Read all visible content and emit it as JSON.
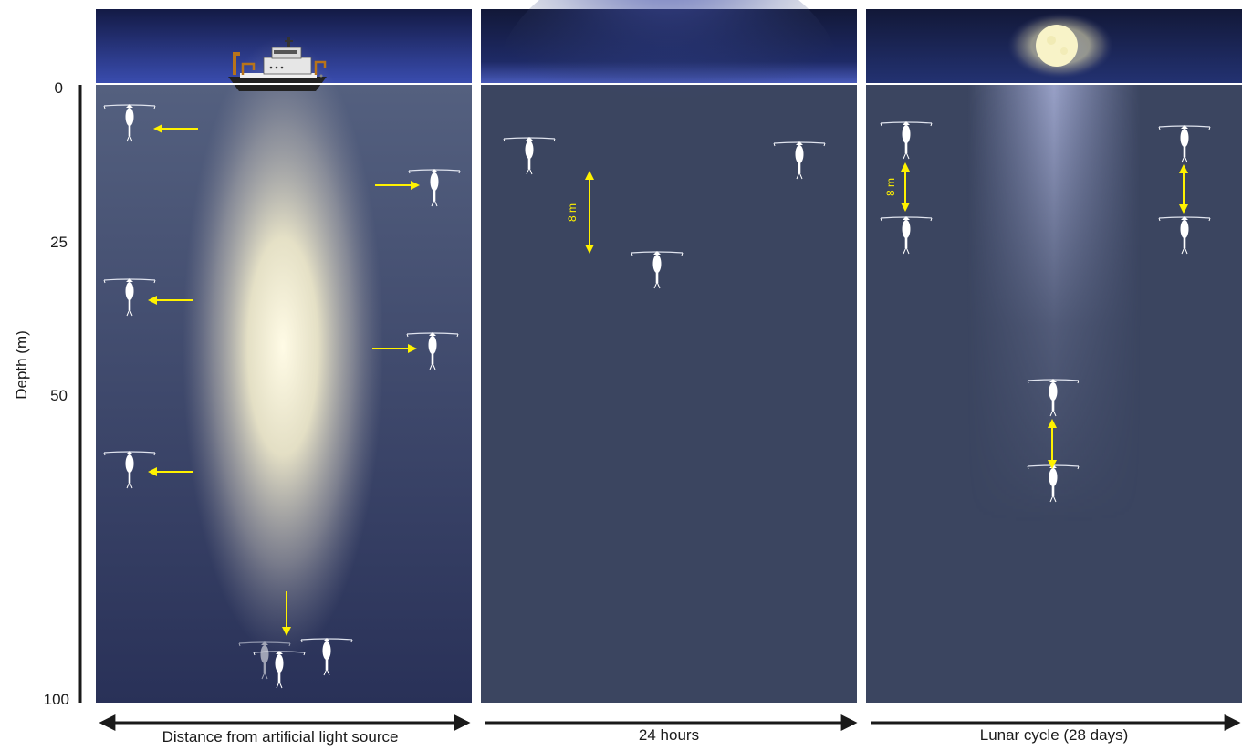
{
  "axis": {
    "label": "Depth (m)",
    "ticks": [
      "0",
      "25",
      "50",
      "100"
    ]
  },
  "panels": [
    {
      "id": "artificial",
      "caption": "Distance from artificial light source",
      "scale_label": ""
    },
    {
      "id": "diel",
      "caption": "24 hours",
      "scale_label": "8 m"
    },
    {
      "id": "lunar",
      "caption": "Lunar cycle (28 days)",
      "scale_label": "8 m"
    }
  ],
  "colors": {
    "water": "#3b4560",
    "sky": "#141a3e",
    "arrow": "#fff200",
    "light": "#fff8d0",
    "axis": "#1a1a1a"
  },
  "icons": [
    "ship-icon",
    "moon-icon",
    "copepod-icon"
  ]
}
